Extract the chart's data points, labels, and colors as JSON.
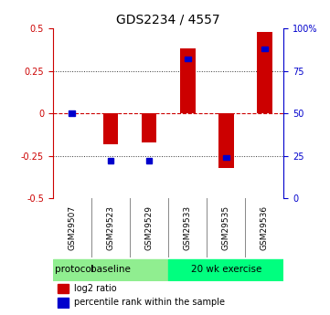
{
  "title": "GDS2234 / 4557",
  "samples": [
    "GSM29507",
    "GSM29523",
    "GSM29529",
    "GSM29533",
    "GSM29535",
    "GSM29536"
  ],
  "log2_ratio": [
    0.0,
    -0.18,
    -0.17,
    0.38,
    -0.32,
    0.48
  ],
  "pct_rank": [
    50.0,
    22.0,
    22.0,
    82.0,
    24.0,
    88.0
  ],
  "groups": [
    {
      "label": "baseline",
      "samples": [
        0,
        1,
        2
      ],
      "color": "#90EE90"
    },
    {
      "label": "20 wk exercise",
      "samples": [
        3,
        4,
        5
      ],
      "color": "#00FF7F"
    }
  ],
  "bar_color_red": "#CC0000",
  "bar_color_blue": "#0000CC",
  "ylim": [
    -0.5,
    0.5
  ],
  "y2lim": [
    0,
    100
  ],
  "yticks_left": [
    -0.5,
    -0.25,
    0,
    0.25,
    0.5
  ],
  "yticks_right": [
    0,
    25,
    50,
    75,
    100
  ],
  "hline_color": "#CC0000",
  "dotted_line_color": "#333333",
  "background_color": "#ffffff",
  "bar_width": 0.4
}
